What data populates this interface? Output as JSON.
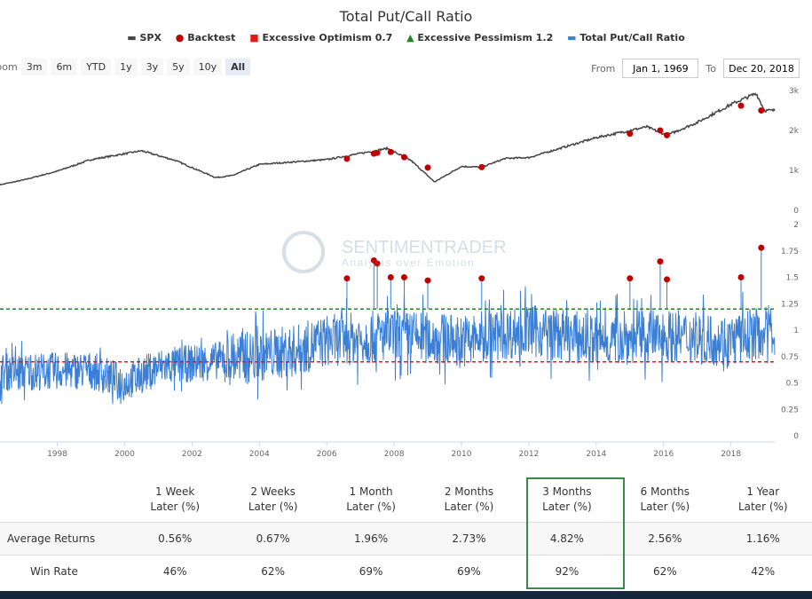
{
  "chart_data": {
    "title": "Total Put/Call Ratio",
    "type": "line",
    "legend": [
      {
        "name": "SPX",
        "color": "#434348",
        "marker": "line"
      },
      {
        "name": "Backtest",
        "color": "#c00000",
        "marker": "circle"
      },
      {
        "name": "Excessive Optimism 0.7",
        "color": "#e31a1c",
        "marker": "dashed-line"
      },
      {
        "name": "Excessive Pessimism 1.2",
        "color": "#1a8a1a",
        "marker": "dashed-line"
      },
      {
        "name": "Total Put/Call Ratio",
        "color": "#3a7fd5",
        "marker": "line"
      }
    ],
    "legend_position": "top",
    "x_ticks": [
      "1998",
      "2000",
      "2002",
      "2004",
      "2006",
      "2008",
      "2010",
      "2012",
      "2014",
      "2016",
      "2018"
    ],
    "xlim": [
      1996.3,
      2019.3
    ],
    "spx": {
      "ylim": [
        0,
        3000
      ],
      "ticks": [
        "0",
        "1k",
        "2k",
        "3k"
      ],
      "points": [
        [
          1996.3,
          640
        ],
        [
          1997,
          760
        ],
        [
          1998,
          980
        ],
        [
          1999,
          1270
        ],
        [
          2000.5,
          1490
        ],
        [
          2001.5,
          1250
        ],
        [
          2002.7,
          820
        ],
        [
          2003.2,
          870
        ],
        [
          2004,
          1150
        ],
        [
          2006,
          1270
        ],
        [
          2007.8,
          1550
        ],
        [
          2008.5,
          1250
        ],
        [
          2009.2,
          710
        ],
        [
          2010,
          1100
        ],
        [
          2010.6,
          1080
        ],
        [
          2011.3,
          1300
        ],
        [
          2012,
          1320
        ],
        [
          2014,
          1820
        ],
        [
          2015.5,
          2090
        ],
        [
          2016.1,
          1880
        ],
        [
          2017,
          2200
        ],
        [
          2018,
          2650
        ],
        [
          2018.75,
          2930
        ],
        [
          2019.0,
          2500
        ]
      ]
    },
    "put_call": {
      "ylim": [
        0,
        2
      ],
      "ticks": [
        "0",
        "0.25",
        "0.5",
        "0.75",
        "1",
        "1.25",
        "1.5",
        "1.75",
        "2"
      ],
      "baseline": [
        [
          1996.3,
          0.6
        ],
        [
          1999,
          0.62
        ],
        [
          2000,
          0.5
        ],
        [
          2001,
          0.65
        ],
        [
          2003,
          0.72
        ],
        [
          2005,
          0.8
        ],
        [
          2006,
          0.9
        ],
        [
          2008,
          0.95
        ],
        [
          2010,
          0.9
        ],
        [
          2012,
          1.0
        ],
        [
          2014,
          0.9
        ],
        [
          2016,
          0.95
        ],
        [
          2018,
          0.9
        ],
        [
          2019.2,
          1.0
        ]
      ],
      "optimism_level": 0.7,
      "pessimism_level": 1.2
    },
    "backtest": [
      [
        2006.6,
        1290,
        1.49
      ],
      [
        2007.4,
        1420,
        1.66
      ],
      [
        2007.5,
        1440,
        1.63
      ],
      [
        2007.9,
        1460,
        1.5
      ],
      [
        2008.3,
        1330,
        1.5
      ],
      [
        2009.0,
        1070,
        1.47
      ],
      [
        2010.6,
        1080,
        1.49
      ],
      [
        2015.0,
        1920,
        1.49
      ],
      [
        2015.9,
        2000,
        1.65
      ],
      [
        2016.1,
        1880,
        1.48
      ],
      [
        2018.3,
        2620,
        1.5
      ],
      [
        2018.9,
        2500,
        1.78
      ]
    ]
  },
  "range_selector": {
    "zoom_label": "Zoom",
    "buttons": [
      "3m",
      "6m",
      "YTD",
      "1y",
      "3y",
      "5y",
      "10y",
      "All"
    ],
    "active": "All"
  },
  "dates": {
    "from_label": "From",
    "from": "Jan 1, 1969",
    "to_label": "To",
    "to": "Dec 20, 2018"
  },
  "watermark": {
    "name": "SENTIMENTRADER",
    "tagline": "Analysis over Emotion"
  },
  "table": {
    "headers": [
      [
        "1 Week",
        "Later (%)"
      ],
      [
        "2 Weeks",
        "Later (%)"
      ],
      [
        "1 Month",
        "Later (%)"
      ],
      [
        "2 Months",
        "Later (%)"
      ],
      [
        "3 Months",
        "Later (%)"
      ],
      [
        "6 Months",
        "Later (%)"
      ],
      [
        "1 Year",
        "Later (%)"
      ]
    ],
    "rows": [
      {
        "label": "Average Returns",
        "values": [
          "0.56%",
          "0.67%",
          "1.96%",
          "2.73%",
          "4.82%",
          "2.56%",
          "1.16%"
        ]
      },
      {
        "label": "Win Rate",
        "values": [
          "46%",
          "62%",
          "69%",
          "69%",
          "92%",
          "62%",
          "42%"
        ]
      }
    ],
    "highlighted_column": "3 Months"
  }
}
